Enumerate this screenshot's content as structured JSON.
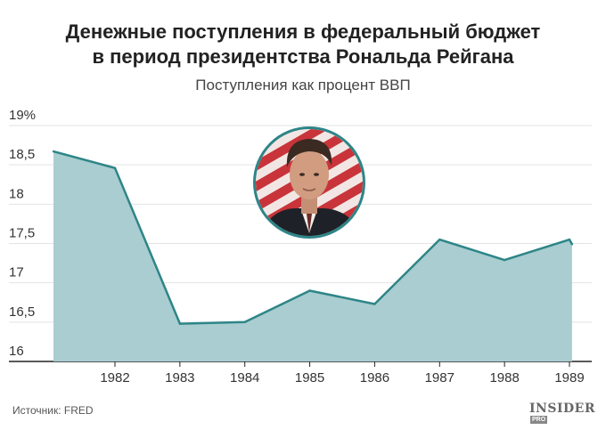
{
  "chart_data": {
    "type": "area",
    "title": "Денежные поступления в федеральный бюджет в период президентства Рональда Рейгана",
    "title_lines": [
      "Денежные поступления в федеральный бюджет",
      "в период президентства Рональда Рейгана"
    ],
    "subtitle": "Поступления как процент ВВП",
    "x": [
      1981.0,
      1982.0,
      1983.0,
      1984.0,
      1985.0,
      1986.0,
      1987.0,
      1988.0,
      1989.0,
      1989.04
    ],
    "values": [
      18.67,
      18.46,
      16.48,
      16.5,
      16.9,
      16.73,
      17.55,
      17.29,
      17.55,
      17.49
    ],
    "xticks": [
      1982,
      1983,
      1984,
      1985,
      1986,
      1987,
      1988,
      1989
    ],
    "xtick_labels": [
      "1982",
      "1983",
      "1984",
      "1985",
      "1986",
      "1987",
      "1988",
      "1989"
    ],
    "yticks": [
      16,
      16.5,
      17,
      17.5,
      18,
      18.5,
      19
    ],
    "ytick_labels": [
      "16",
      "16,5",
      "17",
      "17,5",
      "18",
      "18,5",
      "19%"
    ],
    "ylim": [
      16,
      19
    ],
    "xlim": [
      1980.3,
      1989.3
    ],
    "grid": true,
    "fill_color": "#a9cdd0",
    "line_color": "#2e8587"
  },
  "source": "Источник: FRED",
  "logo": {
    "name": "INSIDER",
    "badge": "PRO"
  },
  "portrait": {
    "icon": "reagan-portrait"
  }
}
